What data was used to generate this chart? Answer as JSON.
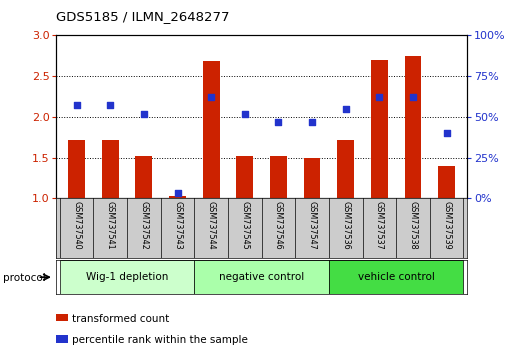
{
  "title": "GDS5185 / ILMN_2648277",
  "samples": [
    "GSM737540",
    "GSM737541",
    "GSM737542",
    "GSM737543",
    "GSM737544",
    "GSM737545",
    "GSM737546",
    "GSM737547",
    "GSM737536",
    "GSM737537",
    "GSM737538",
    "GSM737539"
  ],
  "red_values": [
    1.72,
    1.72,
    1.52,
    1.03,
    2.68,
    1.52,
    1.52,
    1.5,
    1.72,
    2.7,
    2.75,
    1.4
  ],
  "blue_percentile": [
    57,
    57,
    52,
    3,
    62,
    52,
    47,
    47,
    55,
    62,
    62,
    40
  ],
  "groups": [
    {
      "label": "Wig-1 depletion",
      "start": 0,
      "end": 3,
      "color": "#ccffcc"
    },
    {
      "label": "negative control",
      "start": 4,
      "end": 7,
      "color": "#aaffaa"
    },
    {
      "label": "vehicle control",
      "start": 8,
      "end": 11,
      "color": "#44dd44"
    }
  ],
  "ylim_left": [
    1.0,
    3.0
  ],
  "ylim_right": [
    0,
    100
  ],
  "yticks_left": [
    1.0,
    1.5,
    2.0,
    2.5,
    3.0
  ],
  "yticks_right": [
    0,
    25,
    50,
    75,
    100
  ],
  "ytick_labels_right": [
    "0%",
    "25%",
    "50%",
    "75%",
    "100%"
  ],
  "red_color": "#cc2200",
  "blue_color": "#2233cc",
  "bar_width": 0.5,
  "xlabel_area_color": "#cccccc",
  "protocol_label": "protocol",
  "legend_red": "transformed count",
  "legend_blue": "percentile rank within the sample"
}
